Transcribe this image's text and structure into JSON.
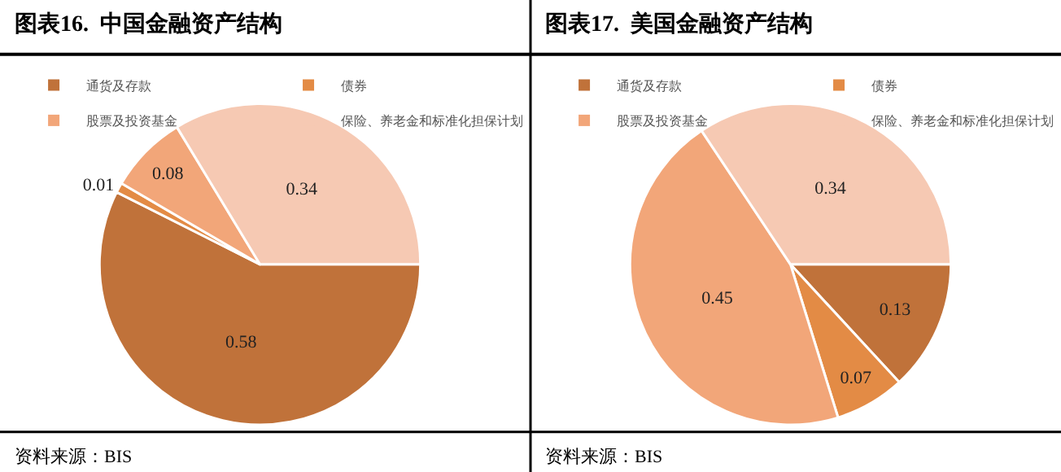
{
  "chart_data": [
    {
      "type": "pie",
      "title": "图表16.  中国金融资产结构",
      "categories": [
        "通货及存款",
        "债券",
        "股票及投资基金",
        "保险、养老金和标准化担保计划"
      ],
      "values": [
        0.58,
        0.01,
        0.08,
        0.34
      ],
      "colors": [
        "#c0723a",
        "#e38b45",
        "#f2a679",
        "#f6c9b3"
      ],
      "data_labels": true,
      "legend": "top",
      "annotations": [
        "资料来源：BIS"
      ]
    },
    {
      "type": "pie",
      "title": "图表17.  美国金融资产结构",
      "categories": [
        "通货及存款",
        "债券",
        "股票及投资基金",
        "保险、养老金和标准化担保计划"
      ],
      "values": [
        0.13,
        0.07,
        0.45,
        0.34
      ],
      "colors": [
        "#c0723a",
        "#e38b45",
        "#f2a679",
        "#f6c9b3"
      ],
      "data_labels": true,
      "legend": "top",
      "annotations": [
        "资料来源：BIS"
      ]
    }
  ]
}
